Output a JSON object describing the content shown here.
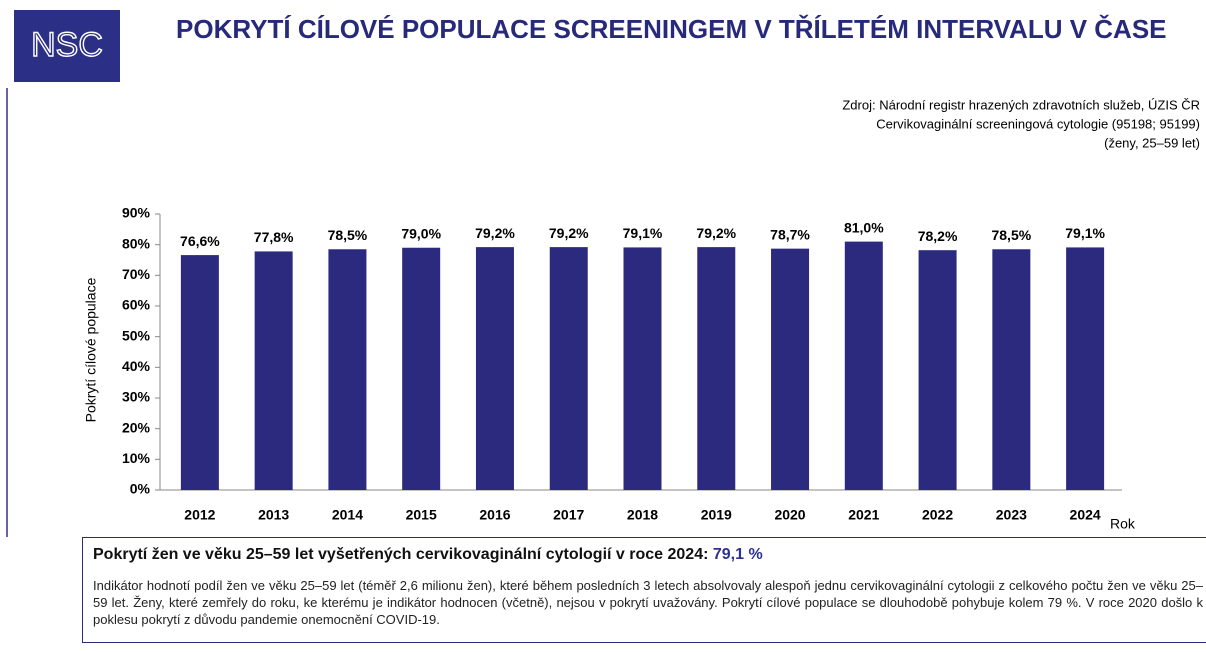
{
  "logo": "NSC",
  "chart_data": {
    "type": "bar",
    "title": "POKRYTÍ CÍLOVÉ POPULACE SCREENINGEM V TŘÍLETÉM INTERVALU V ČASE",
    "source": [
      "Zdroj: Národní registr hrazených zdravotních služeb, ÚZIS ČR",
      "Cervikovaginální screeningová cytologie (95198; 95199)",
      "(ženy, 25–59 let)"
    ],
    "x_label": "Rok",
    "y_label": "Pokrytí cílové populace",
    "categories": [
      "2012",
      "2013",
      "2014",
      "2015",
      "2016",
      "2017",
      "2018",
      "2019",
      "2020",
      "2021",
      "2022",
      "2023",
      "2024"
    ],
    "values": [
      76.6,
      77.8,
      78.5,
      79.0,
      79.2,
      79.2,
      79.1,
      79.2,
      78.7,
      81.0,
      78.2,
      78.5,
      79.1
    ],
    "value_labels": [
      "76,6%",
      "77,8%",
      "78,5%",
      "79,0%",
      "79,2%",
      "79,2%",
      "79,1%",
      "79,2%",
      "78,7%",
      "81,0%",
      "78,2%",
      "78,5%",
      "79,1%"
    ],
    "color": "#2b2a7e",
    "ylim": [
      0,
      90
    ],
    "yticks": [
      {
        "value": 0,
        "label": "0%"
      },
      {
        "value": 10,
        "label": "10%"
      },
      {
        "value": 20,
        "label": "20%"
      },
      {
        "value": 30,
        "label": "30%"
      },
      {
        "value": 40,
        "label": "40%"
      },
      {
        "value": 50,
        "label": "50%"
      },
      {
        "value": 60,
        "label": "60%"
      },
      {
        "value": 70,
        "label": "70%"
      },
      {
        "value": 80,
        "label": "80%"
      },
      {
        "value": 90,
        "label": "90%"
      }
    ],
    "grid": false
  },
  "summary": {
    "title": "Pokrytí žen ve věku 25–59 let vyšetřených cervikovaginální cytologií v roce 2024:",
    "value": "79,1 %",
    "description": "Indikátor hodnotí podíl žen ve věku 25–59 let (téměř 2,6 milionu žen), které během posledních 3 letech absolvovaly alespoň jednu cervikovaginální cytologii z celkového počtu žen ve věku 25–59 let. Ženy, které zemřely do roku, ke kterému je indikátor hodnocen (včetně), nejsou v pokrytí uvažovány. Pokrytí cílové populace se dlouhodobě pohybuje kolem 79 %. V roce 2020 došlo k poklesu pokrytí z důvodu pandemie onemocnění COVID-19."
  }
}
